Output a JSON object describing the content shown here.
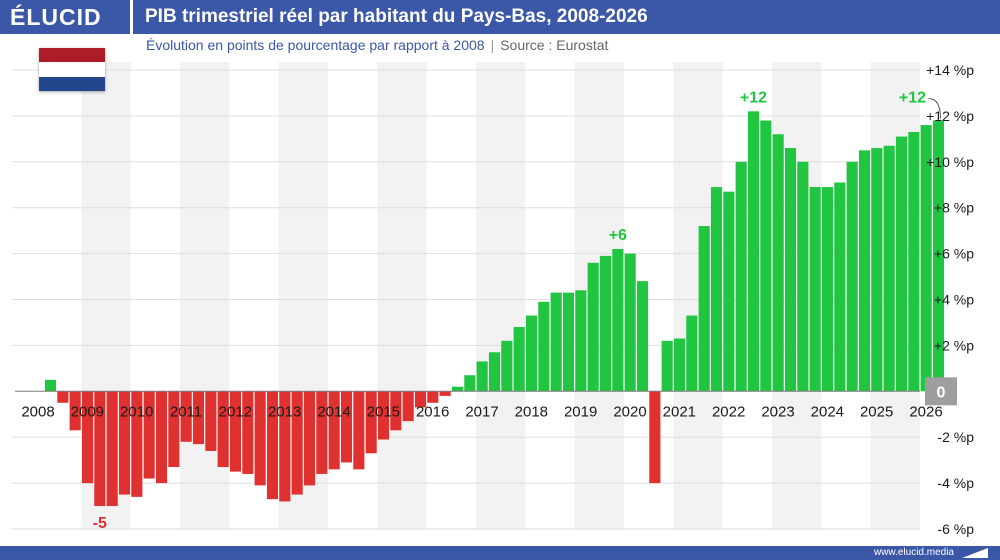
{
  "header": {
    "logo": "ÉLUCID",
    "title": "PIB trimestriel réel par habitant du Pays-Bas, 2008-2026",
    "subtitle": "Évolution en points de pourcentage par rapport à 2008",
    "source": "Source : Eurostat"
  },
  "footer": {
    "site": "www.elucid.media"
  },
  "colors": {
    "brand": "#3a57a8",
    "positive": "#22c541",
    "negative": "#e03131",
    "zero_badge": "#9e9e9e",
    "stripe": "#f2f2f2",
    "flag": [
      "#ae1c28",
      "#ffffff",
      "#21468b"
    ]
  },
  "flag_icon": "netherlands-flag-icon",
  "chart_data": {
    "type": "bar",
    "title": "PIB trimestriel réel par habitant du Pays-Bas, 2008-2026",
    "subtitle": "Évolution en points de pourcentage par rapport à 2008",
    "xlabel": "",
    "ylabel": "",
    "ylim": [
      -6,
      14
    ],
    "yticks": [
      {
        "value": 14,
        "label": "+14 %p"
      },
      {
        "value": 12,
        "label": "+12 %p"
      },
      {
        "value": 10,
        "label": "+10 %p"
      },
      {
        "value": 8,
        "label": "+8 %p"
      },
      {
        "value": 6,
        "label": "+6 %p"
      },
      {
        "value": 4,
        "label": "+4 %p"
      },
      {
        "value": 2,
        "label": "+2 %p"
      },
      {
        "value": 0,
        "label": "0"
      },
      {
        "value": -2,
        "label": "-2 %p"
      },
      {
        "value": -4,
        "label": "-4 %p"
      },
      {
        "value": -6,
        "label": "-6 %p"
      }
    ],
    "year_labels": [
      "2008",
      "2009",
      "2010",
      "2011",
      "2012",
      "2013",
      "2014",
      "2015",
      "2016",
      "2017",
      "2018",
      "2019",
      "2020",
      "2021",
      "2022",
      "2023",
      "2024",
      "2025",
      "2026"
    ],
    "grid": "horizontal",
    "year_stripes": "alternating",
    "x_start": "2008-Q1",
    "values": [
      0.0,
      0.5,
      -0.5,
      -1.7,
      -4.0,
      -5.0,
      -5.0,
      -4.5,
      -4.6,
      -3.8,
      -4.0,
      -3.3,
      -2.2,
      -2.3,
      -2.6,
      -3.3,
      -3.5,
      -3.6,
      -4.1,
      -4.7,
      -4.8,
      -4.5,
      -4.1,
      -3.6,
      -3.4,
      -3.1,
      -3.4,
      -2.7,
      -2.1,
      -1.7,
      -1.3,
      -0.7,
      -0.5,
      -0.2,
      0.2,
      0.7,
      1.3,
      1.7,
      2.2,
      2.8,
      3.3,
      3.9,
      4.3,
      4.3,
      4.4,
      5.6,
      5.9,
      6.2,
      6.0,
      4.8,
      -4.0,
      2.2,
      2.3,
      3.3,
      7.2,
      8.9,
      8.7,
      10.0,
      12.2,
      11.8,
      11.2,
      10.6,
      10.0,
      8.9,
      8.9,
      9.1,
      10.0,
      10.5,
      10.6,
      10.7,
      11.1,
      11.3,
      11.6,
      11.8
    ],
    "annotations": [
      {
        "text": "-5",
        "index": 5
      },
      {
        "text": "+6",
        "index": 47
      },
      {
        "text": "+12",
        "index": 58
      },
      {
        "text": "+12",
        "index": 73
      }
    ]
  }
}
